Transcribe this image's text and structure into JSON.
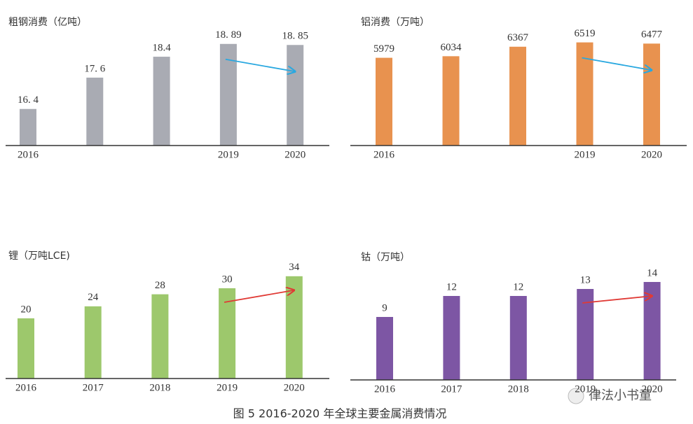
{
  "chart_data": [
    {
      "type": "bar",
      "title": "粗钢消费（亿吨）",
      "categories": [
        "2016",
        null,
        null,
        "2019",
        "2020"
      ],
      "values": [
        16.4,
        17.6,
        18.4,
        18.89,
        18.85
      ],
      "value_labels": [
        "16. 4",
        "17. 6",
        "18.4",
        "18. 89",
        "18. 85"
      ],
      "color": "#a9abb3",
      "arrow_color": "#29a8e0",
      "ylim": [
        15,
        19.5
      ]
    },
    {
      "type": "bar",
      "title": "铝消费（万吨）",
      "categories": [
        "2016",
        null,
        null,
        "2019",
        "2020"
      ],
      "values": [
        5979,
        6034,
        6367,
        6519,
        6477
      ],
      "color": "#e8924f",
      "arrow_color": "#29a8e0",
      "ylim": [
        2900,
        7000
      ]
    },
    {
      "type": "bar",
      "title": "锂（万吨LCE)",
      "categories": [
        "2016",
        "2017",
        "2018",
        "2019",
        "2020"
      ],
      "values": [
        20,
        24,
        28,
        30,
        34
      ],
      "color": "#9dc86c",
      "arrow_color": "#e03a35",
      "ylim": [
        0,
        40
      ]
    },
    {
      "type": "bar",
      "title": "钴（万吨）",
      "categories": [
        "2016",
        "2017",
        "2018",
        "2019",
        "2020"
      ],
      "values": [
        9,
        12,
        12,
        13,
        14
      ],
      "color": "#7d56a4",
      "arrow_color": "#e03a35",
      "ylim": [
        0,
        17
      ]
    }
  ],
  "caption": "图 5 2016-2020 年全球主要金属消费情况",
  "watermark": "律法小书童"
}
